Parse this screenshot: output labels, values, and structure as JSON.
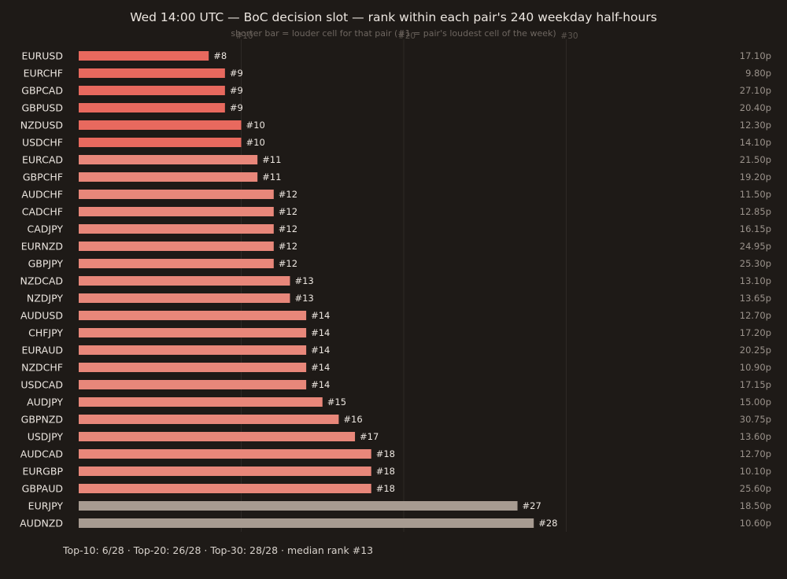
{
  "title": "Wed 14:00 UTC — BoC decision slot — rank within each pair's 240 weekday half-hours",
  "subtitle": "shorter bar = louder cell for that pair (#1 = pair's loudest cell of the week)",
  "footer": "Top-10: 6/28 · Top-20: 26/28 · Top-30: 28/28 · median rank #13",
  "colors": {
    "background": "#1e1a17",
    "top10_bar": "#e8695e",
    "top20_bar": "#e8877a",
    "beyond20_bar": "#a79b91",
    "gridline": "#2e2926"
  },
  "chart_data": {
    "type": "bar",
    "orientation": "horizontal",
    "title": "Wed 14:00 UTC — BoC decision slot — rank within each pair's 240 weekday half-hours",
    "subtitle": "shorter bar = louder cell for that pair (#1 = pair's loudest cell of the week)",
    "xlim": [
      0,
      30
    ],
    "xticks": [
      10,
      20,
      30
    ],
    "xtick_labels": [
      "#10",
      "#20",
      "#30"
    ],
    "grid": true,
    "categories": [
      "EURUSD",
      "EURCHF",
      "GBPCAD",
      "GBPUSD",
      "NZDUSD",
      "USDCHF",
      "EURCAD",
      "GBPCHF",
      "AUDCHF",
      "CADCHF",
      "CADJPY",
      "EURNZD",
      "GBPJPY",
      "NZDCAD",
      "NZDJPY",
      "AUDUSD",
      "CHFJPY",
      "EURAUD",
      "NZDCHF",
      "USDCAD",
      "AUDJPY",
      "GBPNZD",
      "USDJPY",
      "AUDCAD",
      "EURGBP",
      "GBPAUD",
      "EURJPY",
      "AUDNZD"
    ],
    "values": [
      8,
      9,
      9,
      9,
      10,
      10,
      11,
      11,
      12,
      12,
      12,
      12,
      12,
      13,
      13,
      14,
      14,
      14,
      14,
      14,
      15,
      16,
      17,
      18,
      18,
      18,
      27,
      28
    ],
    "rank_labels": [
      "#8",
      "#9",
      "#9",
      "#9",
      "#10",
      "#10",
      "#11",
      "#11",
      "#12",
      "#12",
      "#12",
      "#12",
      "#12",
      "#13",
      "#13",
      "#14",
      "#14",
      "#14",
      "#14",
      "#14",
      "#15",
      "#16",
      "#17",
      "#18",
      "#18",
      "#18",
      "#27",
      "#28"
    ],
    "right_values": [
      "17.10p",
      "9.80p",
      "27.10p",
      "20.40p",
      "12.30p",
      "14.10p",
      "21.50p",
      "19.20p",
      "11.50p",
      "12.85p",
      "16.15p",
      "24.95p",
      "25.30p",
      "13.10p",
      "13.65p",
      "12.70p",
      "17.20p",
      "20.25p",
      "10.90p",
      "17.15p",
      "15.00p",
      "30.75p",
      "13.60p",
      "12.70p",
      "10.10p",
      "25.60p",
      "18.50p",
      "10.60p"
    ]
  }
}
